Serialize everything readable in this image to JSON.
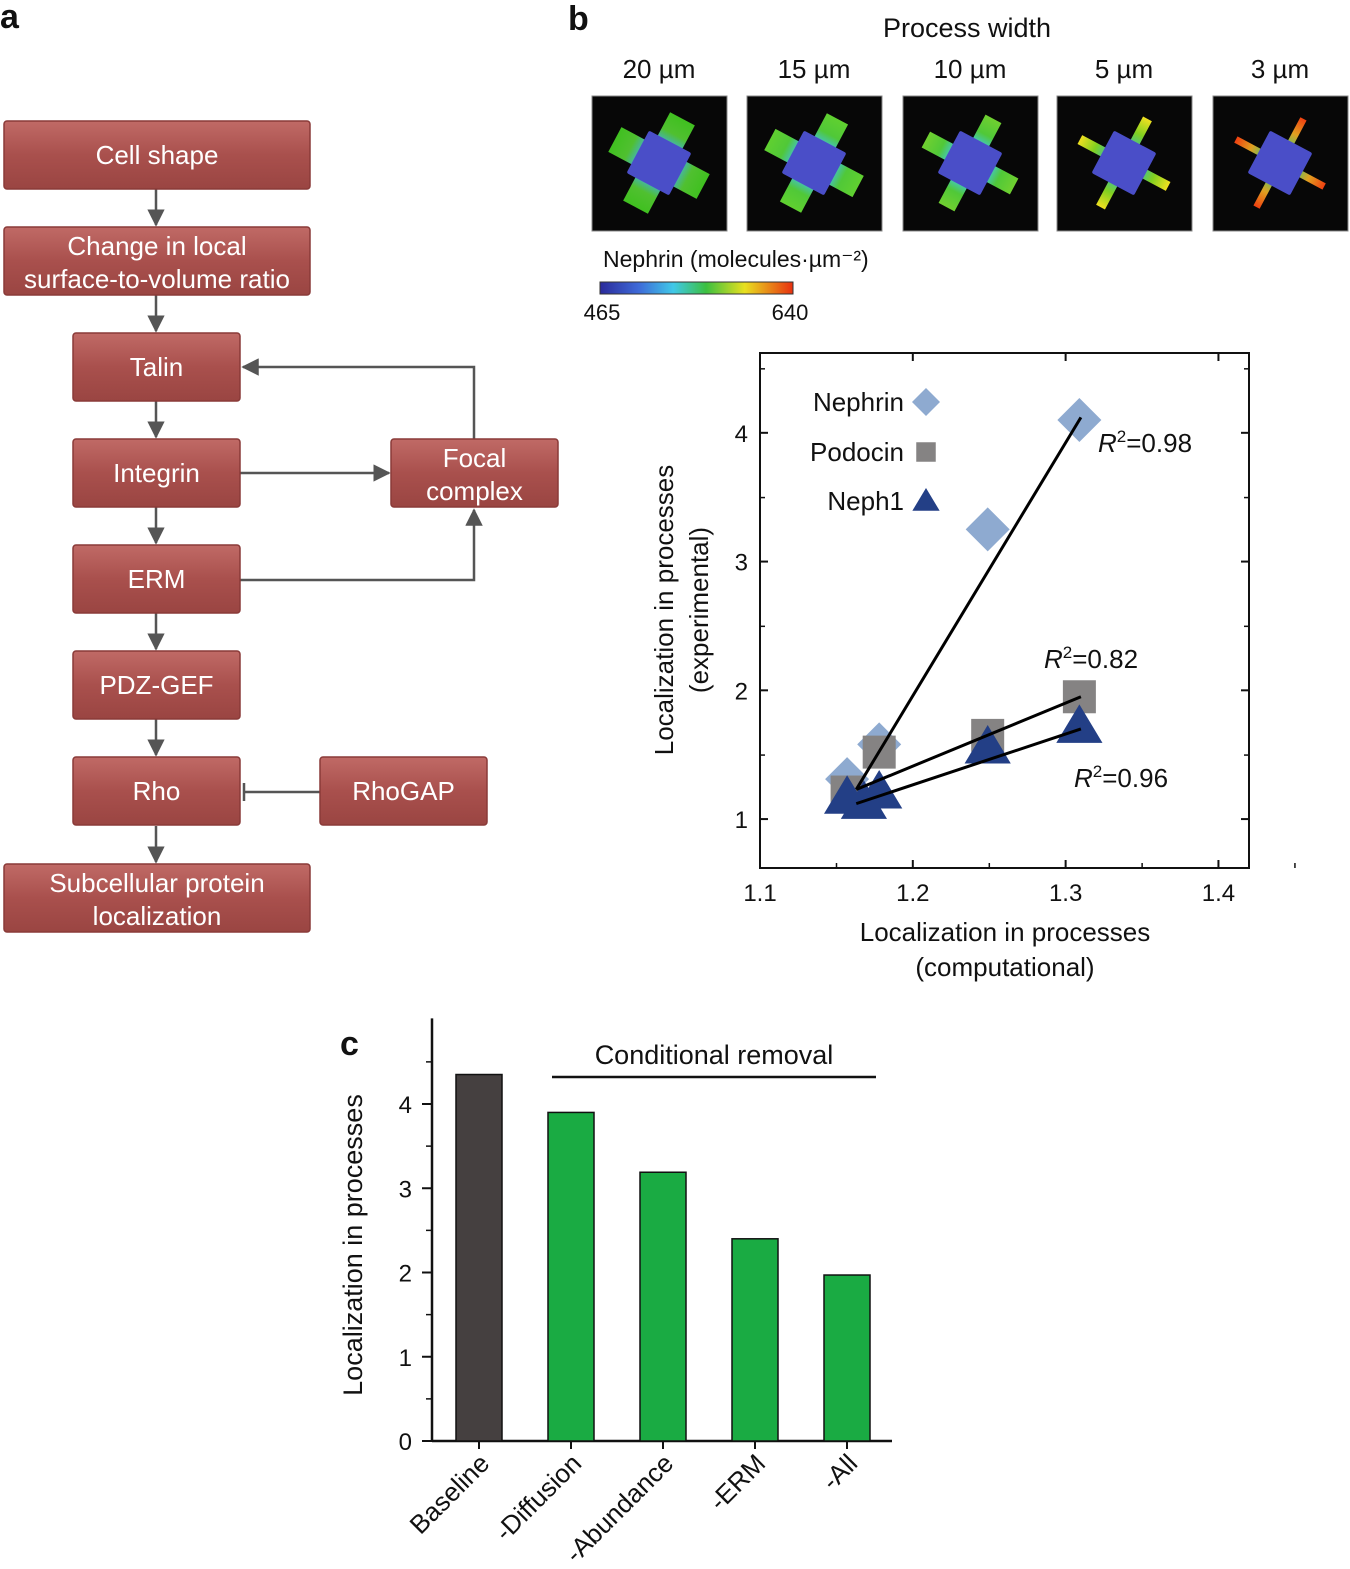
{
  "panels": {
    "a": "a",
    "b": "b",
    "c": "c"
  },
  "flowchart": {
    "box_color": "#a9504d",
    "nodes": {
      "cell_shape": [
        "Cell shape"
      ],
      "surface_ratio": [
        "Change in local",
        "surface-to-volume ratio"
      ],
      "talin": [
        "Talin"
      ],
      "integrin": [
        "Integrin"
      ],
      "erm": [
        "ERM"
      ],
      "pdz_gef": [
        "PDZ-GEF"
      ],
      "rho": [
        "Rho"
      ],
      "subcellular": [
        "Subcellular protein",
        "localization"
      ],
      "focal_complex": [
        "Focal",
        "complex"
      ],
      "rhogap": [
        "RhoGAP"
      ]
    }
  },
  "simulation": {
    "title": "Process width",
    "widths": [
      "20 µm",
      "15 µm",
      "10 µm",
      "5 µm",
      "3 µm"
    ],
    "colorbar_label": "Nephrin (molecules·µm⁻²)",
    "colorbar_min": "465",
    "colorbar_max": "640"
  },
  "chart_data": [
    {
      "type": "scatter",
      "xlabel": [
        "Localization in processes",
        "(computational)"
      ],
      "ylabel": [
        "Localization in processes",
        "(experimental)"
      ],
      "xlim": [
        1.1,
        1.42
      ],
      "ylim": [
        0.62,
        4.62
      ],
      "xticks": [
        "1.1",
        "1.2",
        "1.3",
        "1.4"
      ],
      "yticks": [
        "1",
        "2",
        "3",
        "4"
      ],
      "legend_position": "top-left",
      "series": [
        {
          "name": "Nephrin",
          "marker": "diamond",
          "color": "#8eaad0",
          "x": [
            1.157,
            1.178,
            1.249,
            1.309
          ],
          "y": [
            1.31,
            1.58,
            3.25,
            4.1
          ],
          "fit": [
            [
              1.163,
              1.23
            ],
            [
              1.31,
              4.12
            ]
          ],
          "r2_label": "=0.98"
        },
        {
          "name": "Podocin",
          "marker": "square",
          "color": "#858383",
          "x": [
            1.157,
            1.178,
            1.249,
            1.309
          ],
          "y": [
            1.21,
            1.52,
            1.65,
            1.95
          ],
          "fit": [
            [
              1.163,
              1.23
            ],
            [
              1.31,
              1.95
            ]
          ],
          "r2_label": "=0.82"
        },
        {
          "name": "Neph1",
          "marker": "triangle",
          "color": "#233f86",
          "x": [
            1.157,
            1.168,
            1.178,
            1.249,
            1.309
          ],
          "y": [
            1.17,
            1.13,
            1.21,
            1.56,
            1.72
          ],
          "fit": [
            [
              1.163,
              1.12
            ],
            [
              1.31,
              1.7
            ]
          ],
          "r2_label": "=0.96"
        }
      ]
    },
    {
      "type": "bar",
      "ylabel": "Localization in processes",
      "categories": [
        "Baseline",
        "-Diffusion",
        "-Abundance",
        "-ERM",
        "-All"
      ],
      "values": [
        4.35,
        3.9,
        3.19,
        2.4,
        1.97
      ],
      "colors": [
        "#454040",
        "#1aab43",
        "#1aab43",
        "#1aab43",
        "#1aab43"
      ],
      "ylim": [
        0,
        4.72
      ],
      "yticks": [
        "0",
        "1",
        "2",
        "3",
        "4"
      ],
      "annotation": "Conditional removal"
    }
  ]
}
